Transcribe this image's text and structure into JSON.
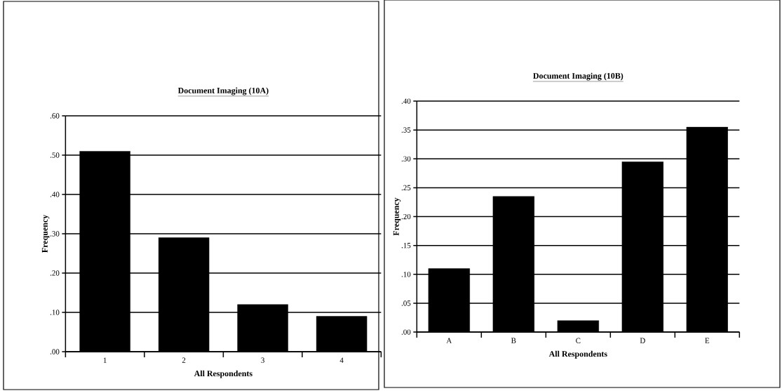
{
  "chart_data": [
    {
      "type": "bar",
      "title": "Document Imaging (10A)",
      "xlabel": "All Respondents",
      "ylabel": "Frequency",
      "categories": [
        "1",
        "2",
        "3",
        "4"
      ],
      "values": [
        0.51,
        0.29,
        0.12,
        0.09
      ],
      "color": "#000000",
      "ylim": [
        0,
        0.6
      ],
      "yticks": [
        {
          "value": 0,
          "label": ".00"
        },
        {
          "value": 0.1,
          "label": ".10"
        },
        {
          "value": 0.2,
          "label": ".20"
        },
        {
          "value": 0.3,
          "label": ".30"
        },
        {
          "value": 0.4,
          "label": ".40"
        },
        {
          "value": 0.5,
          "label": ".50"
        },
        {
          "value": 0.6,
          "label": ".60"
        }
      ],
      "grid": "y"
    },
    {
      "type": "bar",
      "title": "Document Imaging (10B)",
      "xlabel": "All Respondents",
      "ylabel": "Frequency",
      "categories": [
        "A",
        "B",
        "C",
        "D",
        "E"
      ],
      "values": [
        0.11,
        0.235,
        0.02,
        0.295,
        0.355
      ],
      "color": "#000000",
      "ylim": [
        0,
        0.4
      ],
      "yticks": [
        {
          "value": 0,
          "label": ".00"
        },
        {
          "value": 0.05,
          "label": ".05"
        },
        {
          "value": 0.1,
          "label": ".10"
        },
        {
          "value": 0.15,
          "label": ".15"
        },
        {
          "value": 0.2,
          "label": ".20"
        },
        {
          "value": 0.25,
          "label": ".25"
        },
        {
          "value": 0.3,
          "label": ".30"
        },
        {
          "value": 0.35,
          "label": ".35"
        },
        {
          "value": 0.4,
          "label": ".40"
        }
      ],
      "grid": "y"
    }
  ]
}
